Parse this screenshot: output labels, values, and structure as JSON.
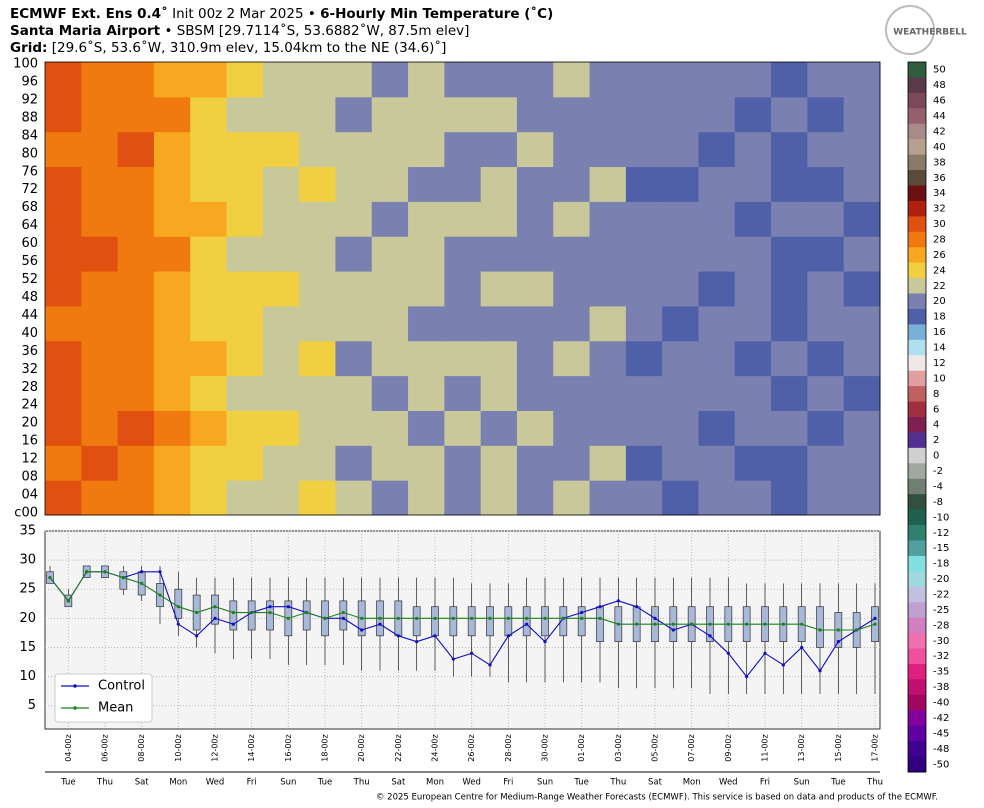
{
  "header": {
    "title": "ECMWF Ext. Ens 0.4˚",
    "init": "Init 00z 2 Mar 2025 •",
    "variable": "6-Hourly Min Temperature (˚C)",
    "station": "Santa Maria Airport",
    "station_info": "• SBSM [29.7114˚S, 53.6882˚W, 87.5m elev]",
    "grid_label": "Grid:",
    "grid_info": "[29.6˚S, 53.6˚W, 310.9m elev, 15.04km to the NE (34.6)˚]",
    "logo": "WEATHERBELL"
  },
  "footer": "© 2025 European Centre for Medium-Range Weather Forecasts (ECMWF). This service is based on data and products of the ECMWF.",
  "chart_data": [
    {
      "type": "heatmap",
      "members": [
        "c00",
        "04",
        "08",
        "12",
        "16",
        "20",
        "24",
        "28",
        "32",
        "36",
        "40",
        "44",
        "48",
        "52",
        "56",
        "60",
        "64",
        "68",
        "72",
        "76",
        "80",
        "84",
        "88",
        "92",
        "96",
        "100"
      ],
      "values": [
        [
          29,
          28,
          27,
          26,
          24,
          22,
          22,
          23,
          21,
          20,
          22,
          20,
          21,
          19,
          21,
          20,
          19,
          18,
          20,
          19,
          18,
          19,
          20
        ],
        [
          28,
          29,
          28,
          25,
          23,
          24,
          21,
          22,
          20,
          22,
          21,
          19,
          22,
          20,
          20,
          21,
          18,
          20,
          19,
          18,
          17,
          20,
          19
        ],
        [
          29,
          28,
          29,
          27,
          25,
          23,
          23,
          21,
          22,
          21,
          20,
          21,
          20,
          21,
          19,
          20,
          20,
          19,
          18,
          20,
          19,
          18,
          19
        ],
        [
          30,
          28,
          28,
          26,
          24,
          22,
          22,
          22,
          21,
          20,
          21,
          20,
          22,
          20,
          20,
          19,
          19,
          20,
          19,
          19,
          18,
          19,
          18
        ],
        [
          29,
          27,
          28,
          26,
          25,
          23,
          21,
          23,
          20,
          21,
          22,
          21,
          21,
          19,
          21,
          20,
          18,
          19,
          20,
          18,
          19,
          18,
          20
        ],
        [
          28,
          28,
          27,
          25,
          24,
          24,
          22,
          22,
          22,
          21,
          20,
          20,
          20,
          20,
          20,
          21,
          20,
          18,
          19,
          19,
          18,
          19,
          19
        ],
        [
          29,
          28,
          28,
          26,
          23,
          23,
          23,
          21,
          21,
          22,
          21,
          19,
          21,
          21,
          19,
          20,
          19,
          19,
          18,
          20,
          17,
          20,
          18
        ],
        [
          29,
          29,
          28,
          27,
          24,
          22,
          22,
          22,
          20,
          21,
          22,
          20,
          20,
          20,
          20,
          19,
          20,
          20,
          19,
          19,
          18,
          18,
          19
        ],
        [
          30,
          28,
          27,
          26,
          25,
          23,
          21,
          22,
          21,
          20,
          21,
          21,
          21,
          19,
          21,
          20,
          19,
          19,
          20,
          18,
          19,
          19,
          18
        ],
        [
          29,
          28,
          28,
          25,
          24,
          24,
          22,
          23,
          22,
          21,
          20,
          20,
          22,
          20,
          20,
          21,
          18,
          18,
          19,
          20,
          18,
          18,
          19
        ],
        [
          28,
          28,
          29,
          26,
          23,
          23,
          23,
          21,
          21,
          22,
          21,
          19,
          20,
          21,
          19,
          19,
          20,
          19,
          18,
          19,
          17,
          19,
          20
        ],
        [
          29,
          27,
          28,
          27,
          24,
          22,
          22,
          22,
          20,
          21,
          22,
          21,
          21,
          20,
          20,
          20,
          19,
          20,
          19,
          18,
          19,
          18,
          19
        ],
        [
          29,
          28,
          28,
          26,
          25,
          23,
          21,
          22,
          21,
          20,
          21,
          20,
          20,
          19,
          21,
          20,
          19,
          19,
          20,
          19,
          18,
          19,
          19
        ]
      ],
      "colorbar_ticks": [
        50,
        48,
        46,
        44,
        42,
        40,
        38,
        36,
        34,
        32,
        30,
        28,
        26,
        24,
        22,
        20,
        18,
        16,
        14,
        12,
        10,
        8,
        6,
        4,
        2,
        0,
        -2,
        -4,
        -8,
        -10,
        -12,
        -15,
        -18,
        -20,
        -22,
        -25,
        -28,
        -30,
        -32,
        -35,
        -38,
        -40,
        -42,
        -45,
        -48,
        -50
      ],
      "colorbar_colors": [
        "#2e5e3e",
        "#5a3a4a",
        "#7a4a5a",
        "#946070",
        "#a88a88",
        "#b8a090",
        "#8a7a6a",
        "#5a4a3a",
        "#6a1010",
        "#b02010",
        "#e05010",
        "#f07a10",
        "#f8a820",
        "#f0d040",
        "#c8c89a",
        "#7a80b0",
        "#5060a8",
        "#7ab0d8",
        "#b0e0f0",
        "#f0e8e8",
        "#e0a0a0",
        "#c06060",
        "#a03040",
        "#802050",
        "#503090",
        "#d0d0d0",
        "#a0a8a0",
        "#708070",
        "#305040",
        "#206050",
        "#308070",
        "#50a0a0",
        "#80e0e0",
        "#a0d8e0",
        "#c0c0e0",
        "#c0a0d0",
        "#d080c0",
        "#f070b0",
        "#f050a0",
        "#e02080",
        "#c01070",
        "#a00860",
        "#8000a0",
        "#6000a0",
        "#400090",
        "#300080"
      ]
    },
    {
      "type": "box-line",
      "categories": [
        null,
        "04-00z",
        null,
        "06-00z",
        null,
        "08-00z",
        null,
        "10-00z",
        null,
        "12-00z",
        null,
        "14-00z",
        null,
        "16-00z",
        null,
        "18-00z",
        null,
        "20-00z",
        null,
        "22-00z",
        null,
        "24-00z",
        null,
        "26-00z",
        null,
        "28-00z",
        null,
        "30-00z",
        null,
        "01-00z",
        null,
        "03-00z",
        null,
        "05-00z",
        null,
        "07-00z",
        null,
        "09-00z",
        null,
        "11-00z",
        null,
        "13-00z",
        null,
        "15-00z",
        null,
        "17-00z"
      ],
      "weekdays": [
        null,
        "Tue",
        null,
        "Thu",
        null,
        "Sat",
        null,
        "Mon",
        null,
        "Wed",
        null,
        "Fri",
        null,
        "Sun",
        null,
        "Tue",
        null,
        "Thu",
        null,
        "Sat",
        null,
        "Mon",
        null,
        "Wed",
        null,
        "Fri",
        null,
        "Sun",
        null,
        "Tue",
        null,
        "Thu",
        null,
        "Sat",
        null,
        "Mon",
        null,
        "Wed",
        null,
        "Fri",
        null,
        "Sun",
        null,
        "Tue",
        null,
        "Thu"
      ],
      "ylim": [
        1,
        35
      ],
      "yticks": [
        5,
        10,
        15,
        20,
        25,
        30,
        35
      ],
      "grid": true,
      "box": {
        "color": "#a8b8d8",
        "low": [
          26,
          22,
          27,
          27,
          24,
          23,
          19,
          17,
          15,
          14,
          13,
          13,
          13,
          12,
          12,
          12,
          12,
          11,
          11,
          11,
          11,
          11,
          10,
          10,
          10,
          9,
          9,
          9,
          9,
          9,
          9,
          8,
          8,
          8,
          8,
          8,
          7,
          7,
          7,
          7,
          7,
          7,
          7,
          7,
          7,
          7
        ],
        "q1": [
          26,
          22,
          27,
          27,
          25,
          24,
          22,
          20,
          18,
          19,
          18,
          18,
          18,
          17,
          18,
          17,
          18,
          17,
          17,
          17,
          17,
          17,
          17,
          17,
          17,
          17,
          17,
          17,
          17,
          17,
          16,
          16,
          16,
          16,
          16,
          16,
          16,
          16,
          16,
          16,
          16,
          16,
          15,
          15,
          15,
          16
        ],
        "q3": [
          28,
          24,
          29,
          29,
          28,
          28,
          26,
          25,
          24,
          24,
          23,
          23,
          23,
          23,
          23,
          23,
          23,
          23,
          23,
          23,
          22,
          22,
          22,
          22,
          22,
          22,
          22,
          22,
          22,
          22,
          22,
          22,
          22,
          22,
          22,
          22,
          22,
          22,
          22,
          22,
          22,
          22,
          22,
          21,
          21,
          22
        ],
        "high": [
          29,
          25,
          29,
          29,
          29,
          29,
          29,
          28,
          27,
          27,
          27,
          27,
          27,
          27,
          27,
          27,
          27,
          27,
          27,
          27,
          27,
          27,
          27,
          26,
          26,
          26,
          27,
          27,
          27,
          27,
          27,
          27,
          27,
          27,
          27,
          27,
          27,
          27,
          26,
          26,
          26,
          26,
          26,
          26,
          26,
          26
        ]
      },
      "series": [
        {
          "name": "Control",
          "color": "#1010c0",
          "values": [
            27,
            23,
            28,
            28,
            27,
            28,
            28,
            19,
            17,
            20,
            19,
            21,
            22,
            22,
            21,
            20,
            20,
            18,
            19,
            17,
            16,
            17,
            13,
            14,
            12,
            17,
            19,
            16,
            20,
            21,
            22,
            23,
            22,
            20,
            18,
            19,
            17,
            14,
            10,
            14,
            12,
            15,
            11,
            16,
            18,
            20
          ]
        },
        {
          "name": "Mean",
          "color": "#208020",
          "values": [
            27,
            23,
            28,
            28,
            27,
            26,
            24,
            22,
            21,
            22,
            21,
            21,
            21,
            20,
            21,
            20,
            21,
            20,
            20,
            20,
            20,
            20,
            20,
            20,
            20,
            20,
            20,
            20,
            20,
            20,
            20,
            19,
            19,
            19,
            19,
            19,
            19,
            19,
            19,
            19,
            19,
            19,
            18,
            18,
            18,
            19
          ]
        }
      ],
      "legend": "lower left"
    }
  ]
}
